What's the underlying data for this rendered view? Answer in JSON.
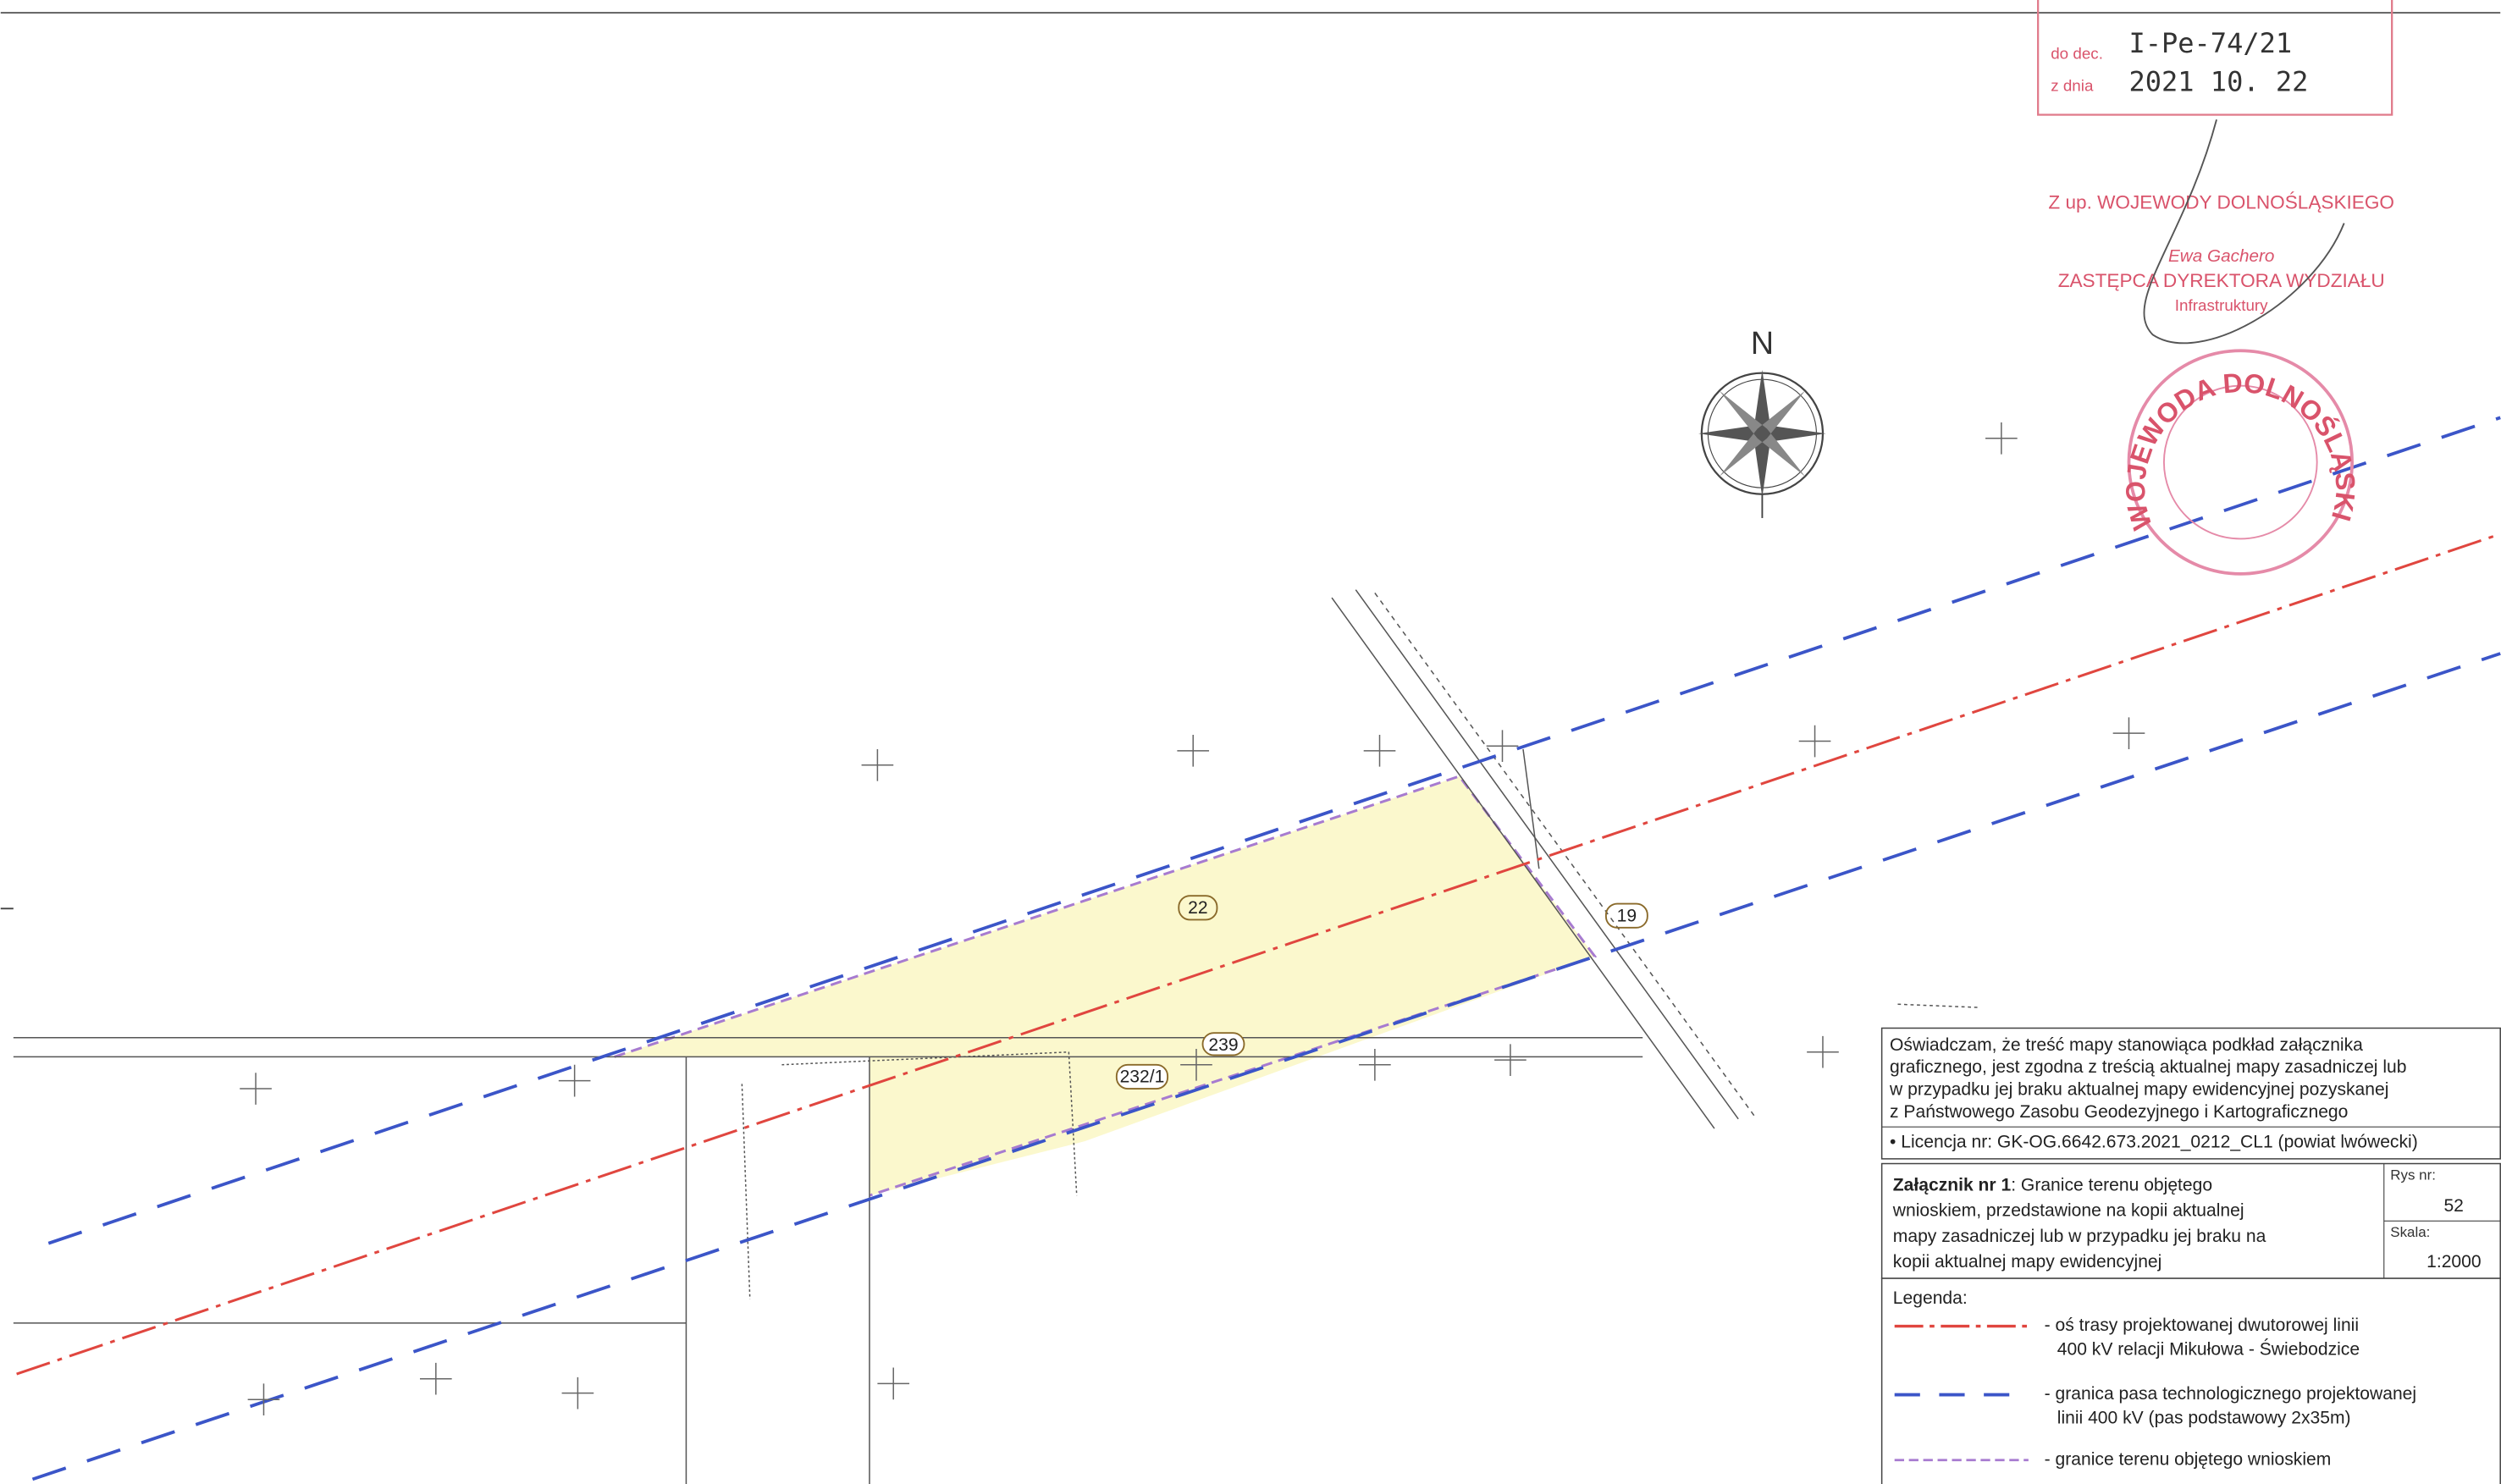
{
  "stamp": {
    "decision_label": "do dec.",
    "decision_no": "I-Pe-74/21",
    "date_label": "z dnia",
    "date": "2021 10. 22",
    "lines": [
      "Z up. WOJEWODY DOLNOŚLĄSKIEGO",
      "Ewa Gachero",
      "ZASTĘPCA DYREKTORA WYDZIAŁU",
      "Infrastruktury"
    ],
    "seal": "WOJEWODA DOLNOŚLĄSKI"
  },
  "compass": "N",
  "parcels": [
    "22",
    "19",
    "239",
    "232/1"
  ],
  "statement": [
    "Oświadczam, że treść mapy stanowiąca podkład załącznika",
    "graficznego, jest zgodna z treścią aktualnej mapy zasadniczej lub",
    "w przypadku jej braku aktualnej mapy ewidencyjnej pozyskanej",
    "z Państwowego Zasobu Geodezyjnego i Kartograficznego"
  ],
  "license": "• Licencja nr: GK-OG.6642.673.2021_0212_CL1 (powiat lwówecki)",
  "title_block": {
    "title_bold": "Załącznik nr 1",
    "title_lines": [
      ": Granice terenu objętego",
      "wnioskiem, przedstawione na kopii aktualnej",
      "mapy zasadniczej lub w przypadku jej braku na",
      "kopii aktualnej mapy ewidencyjnej"
    ],
    "drawing_no_label": "Rys nr:",
    "drawing_no": "52",
    "scale_label": "Skala:",
    "scale": "1:2000"
  },
  "legend": {
    "title": "Legenda:",
    "items": [
      [
        "- oś trasy projektowanej dwutorowej linii",
        "400 kV relacji Mikułowa - Świebodzice"
      ],
      [
        "- granica pasa technologicznego projektowanej",
        "linii 400 kV (pas podstawowy 2x35m)"
      ],
      [
        "- granice terenu objętego wnioskiem"
      ]
    ]
  }
}
